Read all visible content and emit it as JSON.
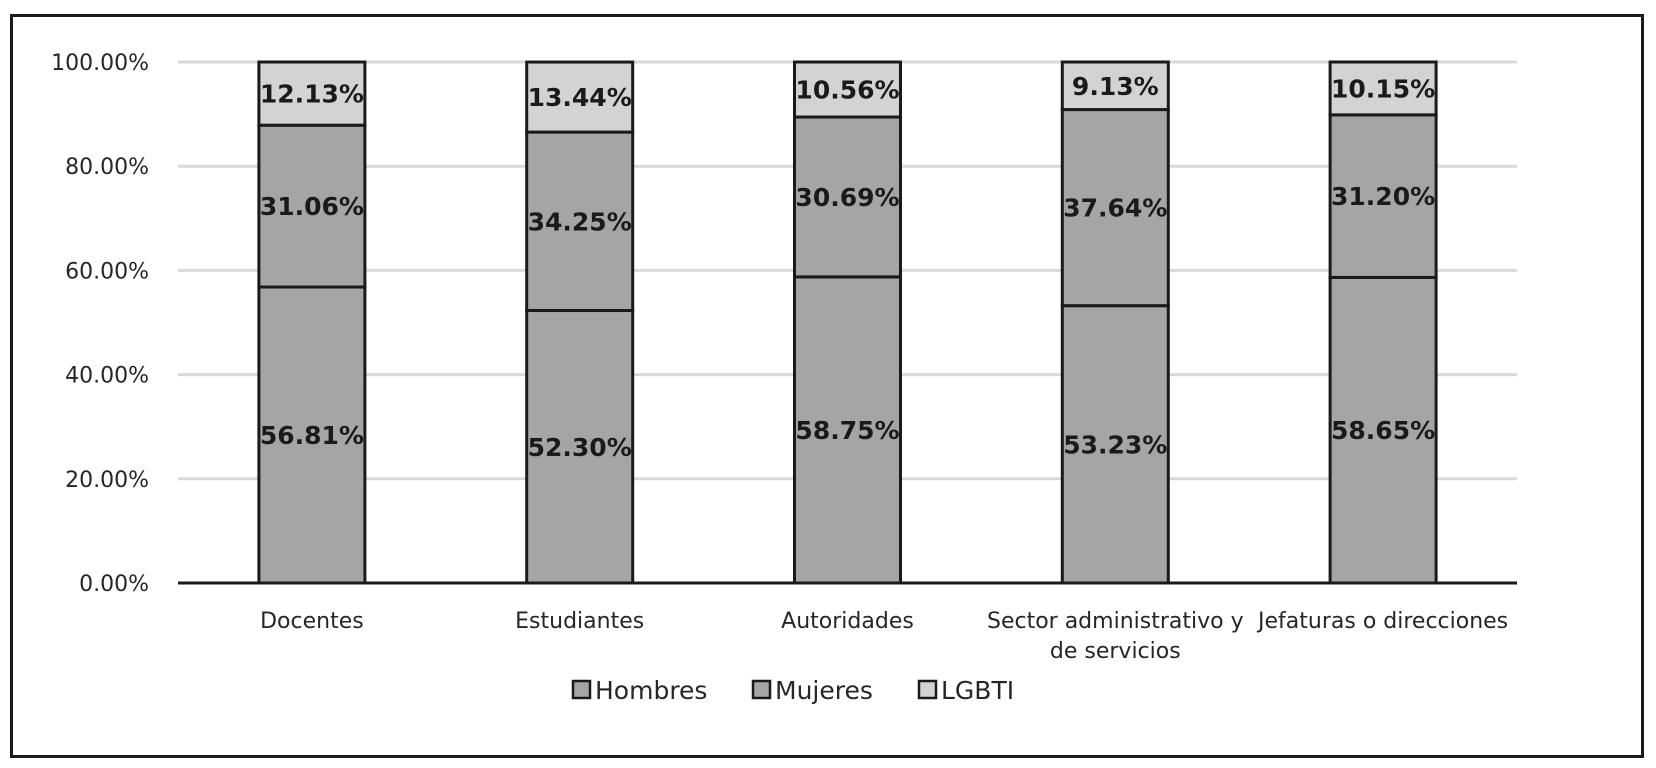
{
  "chart_data": {
    "type": "bar",
    "stacked": true,
    "categories": [
      [
        "Docentes"
      ],
      [
        "Estudiantes"
      ],
      [
        "Autoridades"
      ],
      [
        "Sector administrativo y",
        "de servicios"
      ],
      [
        "Jefaturas o direcciones"
      ]
    ],
    "series": [
      {
        "name": "Hombres",
        "values": [
          56.81,
          52.3,
          58.75,
          53.23,
          58.65
        ],
        "labels": [
          "56.81%",
          "52.30%",
          "58.75%",
          "53.23%",
          "58.65%"
        ],
        "color": "#a5a5a7"
      },
      {
        "name": "Mujeres",
        "values": [
          31.06,
          34.25,
          30.69,
          37.64,
          31.2
        ],
        "labels": [
          "31.06%",
          "34.25%",
          "30.69%",
          "37.64%",
          "31.20%"
        ],
        "color": "#a5a5a7"
      },
      {
        "name": "LGBTI",
        "values": [
          12.13,
          13.44,
          10.56,
          9.13,
          10.15
        ],
        "labels": [
          "12.13%",
          "13.44%",
          "10.56%",
          "9.13%",
          "10.15%"
        ],
        "color": "#d3d3d4"
      }
    ],
    "yticks": [
      "0.00%",
      "20.00%",
      "40.00%",
      "60.00%",
      "80.00%",
      "100.00%"
    ],
    "ylim": [
      0,
      100
    ],
    "grid": true,
    "legend_position": "bottom",
    "title": "",
    "xlabel": "",
    "ylabel": ""
  }
}
